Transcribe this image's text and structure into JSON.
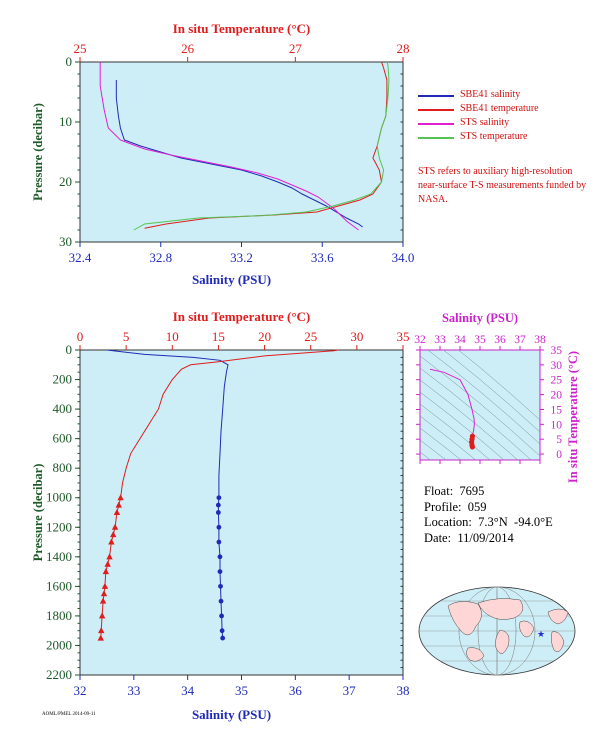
{
  "colors": {
    "plot_bg": "#cdeef6",
    "salinity": "#1f2bb8",
    "temperature": "#e01c1c",
    "sts_salinity": "#e020d0",
    "sts_temperature": "#55c455",
    "pressure_axis": "#1e5a2a",
    "ts_axis": "#cc22cc"
  },
  "info": {
    "float": "Float:  7695",
    "profile": "Profile:  059",
    "location": "Location:  7.3°N  -94.0°E",
    "date": "Date:  11/09/2014"
  },
  "tiny_label": "AOML/PMEL 2014-09-11",
  "chart_data": [
    {
      "type": "line",
      "title": "",
      "xlabel": "Salinity (PSU)",
      "x2label": "In situ Temperature (°C)",
      "ylabel": "Pressure (decibar)",
      "xlim": [
        32.4,
        34.0
      ],
      "x2lim": [
        25,
        28
      ],
      "ylim": [
        30,
        0
      ],
      "xticks": [
        "32.4",
        "32.8",
        "33.2",
        "33.6",
        "34.0"
      ],
      "x2ticks": [
        "25",
        "26",
        "27",
        "28"
      ],
      "yticks": [
        "0",
        "10",
        "20",
        "30"
      ],
      "legend": [
        "SBE41 salinity",
        "SBE41 temperature",
        "STS salinity",
        "STS temperature"
      ],
      "legend_position": "right",
      "note": "STS refers to auxiliary high-resolution near-surface T-S measurements funded by NASA.",
      "series": [
        {
          "name": "SBE41 salinity",
          "axis": "x",
          "color_key": "salinity",
          "x": [
            32.58,
            32.58,
            32.59,
            32.6,
            32.62,
            32.7,
            32.8,
            32.9,
            33.05,
            33.2,
            33.3,
            33.38,
            33.45,
            33.5,
            33.62,
            33.72,
            33.78,
            33.8
          ],
          "y": [
            3,
            6,
            9,
            11,
            13,
            14,
            15,
            16,
            17,
            18,
            19,
            20,
            21,
            22,
            24,
            26,
            27,
            27.5
          ]
        },
        {
          "name": "SBE41 temperature",
          "axis": "x2",
          "color_key": "temperature",
          "x": [
            27.8,
            27.82,
            27.85,
            27.85,
            27.84,
            27.8,
            27.76,
            27.72,
            27.78,
            27.8,
            27.72,
            27.6,
            27.4,
            27.2,
            26.8,
            26.2,
            25.8,
            25.6
          ],
          "y": [
            0,
            1,
            3,
            6,
            9,
            11,
            14,
            16,
            18,
            20,
            22,
            23,
            24,
            25,
            25.5,
            26,
            27,
            27.7
          ]
        },
        {
          "name": "STS salinity",
          "axis": "x",
          "color_key": "sts_salinity",
          "x": [
            32.5,
            32.5,
            32.52,
            32.54,
            32.6,
            32.72,
            32.85,
            33.0,
            33.15,
            33.28,
            33.38,
            33.45,
            33.52,
            33.58,
            33.66,
            33.72,
            33.78
          ],
          "y": [
            0,
            4,
            8,
            11,
            13,
            14.5,
            15.5,
            16.5,
            17.5,
            18.5,
            19.5,
            20.5,
            21.5,
            22.5,
            24.5,
            26.5,
            28
          ]
        },
        {
          "name": "STS temperature",
          "axis": "x2",
          "color_key": "sts_temperature",
          "x": [
            27.85,
            27.86,
            27.87,
            27.86,
            27.84,
            27.8,
            27.76,
            27.78,
            27.82,
            27.8,
            27.7,
            27.55,
            27.35,
            27.1,
            26.7,
            26.1,
            25.6,
            25.5
          ],
          "y": [
            0,
            0.5,
            3,
            6,
            9,
            11,
            14,
            16,
            18,
            20,
            22,
            23,
            24,
            25,
            25.6,
            26,
            27,
            28
          ]
        }
      ]
    },
    {
      "type": "line",
      "title": "",
      "xlabel": "Salinity (PSU)",
      "x2label": "In situ Temperature (°C)",
      "ylabel": "Pressure (decibar)",
      "xlim": [
        32,
        38
      ],
      "x2lim": [
        0,
        35
      ],
      "ylim": [
        2200,
        0
      ],
      "xticks": [
        "32",
        "33",
        "34",
        "35",
        "36",
        "37",
        "38"
      ],
      "x2ticks": [
        "0",
        "5",
        "10",
        "15",
        "20",
        "25",
        "30",
        "35"
      ],
      "yticks": [
        "0",
        "200",
        "400",
        "600",
        "800",
        "1000",
        "1200",
        "1400",
        "1600",
        "1800",
        "2000",
        "2200"
      ],
      "series": [
        {
          "name": "salinity",
          "axis": "x",
          "color_key": "salinity",
          "x": [
            32.5,
            33.2,
            34.1,
            34.6,
            34.75,
            34.72,
            34.68,
            34.65,
            34.62,
            34.6,
            34.58,
            34.58,
            34.57,
            34.57,
            34.58,
            34.58,
            34.6,
            34.6,
            34.61,
            34.62,
            34.63,
            34.64,
            34.65
          ],
          "y": [
            0,
            30,
            50,
            70,
            100,
            150,
            250,
            400,
            550,
            700,
            850,
            1000,
            1050,
            1100,
            1200,
            1300,
            1400,
            1500,
            1600,
            1700,
            1800,
            1900,
            1950
          ],
          "markers_from_index": 11
        },
        {
          "name": "temperature",
          "axis": "x2",
          "color_key": "temperature",
          "x": [
            28,
            27.5,
            20,
            15,
            12,
            11,
            10,
            9,
            8.5,
            7.5,
            6.5,
            5.5,
            5,
            4.6,
            4.4,
            4.2,
            4.0,
            3.8,
            3.6,
            3.4,
            3.2,
            3.0,
            2.8,
            2.7,
            2.6,
            2.5,
            2.4,
            2.3,
            2.25
          ],
          "y": [
            0,
            5,
            40,
            80,
            100,
            130,
            200,
            300,
            400,
            500,
            600,
            700,
            800,
            900,
            1000,
            1050,
            1100,
            1200,
            1250,
            1300,
            1400,
            1450,
            1500,
            1600,
            1650,
            1700,
            1800,
            1900,
            1950
          ],
          "markers_from_index": 14
        }
      ]
    },
    {
      "type": "line",
      "title": "",
      "xlabel": "Salinity (PSU)",
      "ylabel": "In situ Temperature (°C)",
      "xlim": [
        32,
        38
      ],
      "ylim": [
        -2,
        35
      ],
      "xticks": [
        "32",
        "33",
        "34",
        "35",
        "36",
        "37",
        "38"
      ],
      "yticks": [
        "0",
        "5",
        "10",
        "15",
        "20",
        "25",
        "30",
        "35"
      ],
      "series": [
        {
          "name": "T-S profile",
          "color_key": "sts_salinity",
          "x": [
            32.5,
            33.2,
            34.0,
            34.4,
            34.6,
            34.7,
            34.72,
            34.68,
            34.62,
            34.6,
            34.58,
            34.6,
            34.62
          ],
          "y": [
            28.5,
            27.5,
            25,
            20,
            15,
            12,
            10,
            8,
            6,
            5,
            4,
            3,
            2.4
          ]
        }
      ]
    }
  ]
}
